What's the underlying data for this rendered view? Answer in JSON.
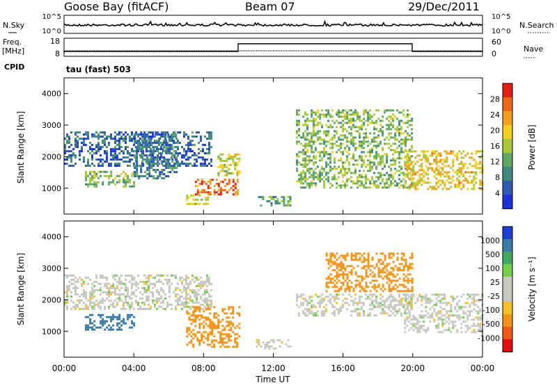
{
  "header": {
    "station": "Goose Bay (fitACF)",
    "beam": "Beam 07",
    "date": "29/Dec/2011"
  },
  "noise_panel": {
    "left_label": "N.Sky",
    "right_label": "N.Search",
    "left_ticks": [
      "10^5",
      "10^0"
    ],
    "right_ticks": [
      "10^5",
      "10^0"
    ]
  },
  "freq_panel": {
    "left_label_1": "Freq.",
    "left_label_2": "[MHz]",
    "right_label": "Nave",
    "left_ticks": [
      "18",
      "8"
    ],
    "right_ticks": [
      "60",
      "0"
    ]
  },
  "cpid": {
    "label": "CPID",
    "value": "tau (fast) 503"
  },
  "colors": {
    "power_scale": [
      "#1f32d8",
      "#2c58b0",
      "#3f8a7e",
      "#60a860",
      "#a8c83a",
      "#f2d020",
      "#f3a01e",
      "#ee6818",
      "#e22010"
    ],
    "velocity_scale": [
      "#e00e0e",
      "#f05a12",
      "#f39418",
      "#f7c028",
      "#c8c8c0",
      "#c8c8c0",
      "#6fd04a",
      "#40a860",
      "#3a7aa8",
      "#1c3fd6"
    ]
  },
  "chart_data": [
    {
      "type": "heatmap",
      "title": "",
      "ylabel": "Slant Range [km]",
      "ylim": [
        180,
        4500
      ],
      "yticks": [
        "1000",
        "2000",
        "3000",
        "4000"
      ],
      "colorbar_label": "Power [dB]",
      "colorbar_ticks": [
        "4",
        "8",
        "12",
        "16",
        "20",
        "24",
        "28"
      ],
      "colorbar_range": [
        0,
        32
      ],
      "echo_regions": [
        {
          "t": [
            0.0,
            8.5
          ],
          "r": [
            1700,
            2800
          ],
          "value": 6
        },
        {
          "t": [
            1.2,
            4.0
          ],
          "r": [
            1050,
            1550
          ],
          "value": 14
        },
        {
          "t": [
            4.0,
            6.5
          ],
          "r": [
            1300,
            2800
          ],
          "value": 8
        },
        {
          "t": [
            7.0,
            8.2
          ],
          "r": [
            500,
            800
          ],
          "value": 16
        },
        {
          "t": [
            7.5,
            10.0
          ],
          "r": [
            800,
            1300
          ],
          "value": 26
        },
        {
          "t": [
            8.8,
            10.0
          ],
          "r": [
            1400,
            2100
          ],
          "value": 18
        },
        {
          "t": [
            11.0,
            13.0
          ],
          "r": [
            450,
            750
          ],
          "value": 12
        },
        {
          "t": [
            13.3,
            20.0
          ],
          "r": [
            1000,
            3500
          ],
          "value": 14
        },
        {
          "t": [
            19.5,
            24.0
          ],
          "r": [
            1000,
            2200
          ],
          "value": 20
        }
      ]
    },
    {
      "type": "heatmap",
      "title": "",
      "xlabel": "Time UT",
      "ylabel": "Slant Range [km]",
      "ylim": [
        180,
        4500
      ],
      "yticks": [
        "1000",
        "2000",
        "3000",
        "4000"
      ],
      "xticks": [
        "00:00",
        "04:00",
        "08:00",
        "12:00",
        "16:00",
        "20:00",
        "00:00"
      ],
      "xlim": [
        0,
        24
      ],
      "colorbar_label": "Velocity [m s⁻¹]",
      "colorbar_ticks": [
        "1000",
        "500",
        "100",
        "25",
        "-25",
        "-100",
        "-500",
        "-1000"
      ],
      "echo_regions": [
        {
          "t": [
            0.0,
            8.5
          ],
          "r": [
            1700,
            2800
          ],
          "value": 0
        },
        {
          "t": [
            1.2,
            4.0
          ],
          "r": [
            1050,
            1550
          ],
          "value": 200
        },
        {
          "t": [
            7.0,
            10.0
          ],
          "r": [
            500,
            1800
          ],
          "value": -150
        },
        {
          "t": [
            11.0,
            13.0
          ],
          "r": [
            450,
            750
          ],
          "value": 0
        },
        {
          "t": [
            13.3,
            20.0
          ],
          "r": [
            1500,
            2200
          ],
          "value": 0
        },
        {
          "t": [
            15.0,
            20.0
          ],
          "r": [
            2300,
            3500
          ],
          "value": -200
        },
        {
          "t": [
            19.5,
            24.0
          ],
          "r": [
            1000,
            2200
          ],
          "value": 0
        }
      ]
    }
  ]
}
